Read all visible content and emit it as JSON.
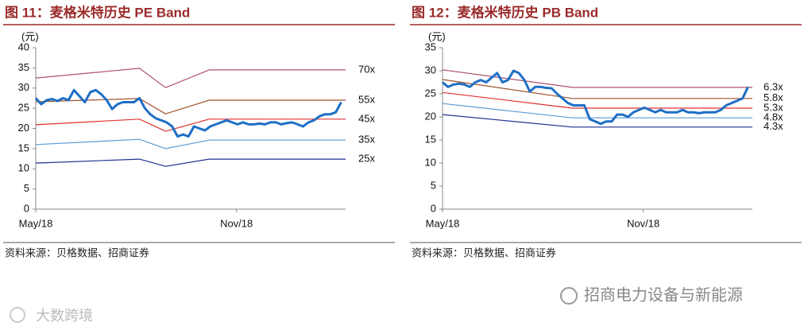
{
  "chart_data": [
    {
      "type": "line",
      "title": "图 11：麦格米特历史 PE Band",
      "y_label": "(元)",
      "source": "资料来源：贝格数据、招商证券",
      "xlim": [
        0,
        284
      ],
      "xticks": [
        {
          "value": 0,
          "label": "May/18"
        },
        {
          "value": 184,
          "label": "Nov/18"
        }
      ],
      "ylim": [
        0,
        40
      ],
      "yticks": [
        0,
        5,
        10,
        15,
        20,
        25,
        30,
        35,
        40
      ],
      "series": [
        {
          "name": "70x",
          "color": "#b0506e",
          "x": [
            0,
            95,
            119,
            159,
            284
          ],
          "values": [
            32.5,
            34.9,
            30.1,
            34.5,
            34.5
          ]
        },
        {
          "name": "55x",
          "color": "#a0522d",
          "x": [
            0,
            95,
            119,
            159,
            284
          ],
          "values": [
            26.6,
            27.4,
            23.6,
            27.0,
            27.0
          ]
        },
        {
          "name": "45x",
          "color": "#e03232",
          "x": [
            0,
            95,
            119,
            159,
            284
          ],
          "values": [
            20.9,
            22.3,
            19.3,
            22.3,
            22.3
          ]
        },
        {
          "name": "35x",
          "color": "#5b9bd5",
          "x": [
            0,
            95,
            119,
            159,
            284
          ],
          "values": [
            16.0,
            17.3,
            15.0,
            17.1,
            17.1
          ]
        },
        {
          "name": "25x",
          "color": "#1f2f8f",
          "x": [
            0,
            95,
            119,
            159,
            284
          ],
          "values": [
            11.4,
            12.4,
            10.6,
            12.4,
            12.4
          ]
        },
        {
          "color": "#1f6fc5",
          "x": [
            0,
            5,
            10,
            15,
            20,
            25,
            30,
            35,
            40,
            45,
            50,
            55,
            60,
            65,
            70,
            75,
            80,
            85,
            90,
            95,
            100,
            105,
            110,
            115,
            120,
            125,
            130,
            135,
            140,
            145,
            150,
            155,
            160,
            165,
            170,
            175,
            180,
            185,
            190,
            195,
            200,
            205,
            210,
            215,
            220,
            225,
            230,
            235,
            240,
            245,
            250,
            255,
            260,
            265,
            270,
            275,
            280
          ],
          "values": [
            27.5,
            26,
            27,
            27.3,
            26.8,
            27.5,
            27,
            29.5,
            28,
            26.5,
            29,
            29.5,
            28.5,
            27,
            24.8,
            26,
            26.5,
            26.5,
            26.5,
            27.5,
            25,
            23.5,
            22.5,
            22,
            21.5,
            20.5,
            18,
            18.5,
            18,
            20.5,
            20,
            19.5,
            20.5,
            21,
            21.5,
            22,
            21.5,
            21,
            21.5,
            21,
            21,
            21.2,
            21,
            21.5,
            21.5,
            21,
            21.3,
            21.5,
            21,
            20.5,
            21.5,
            22,
            23,
            23.5,
            23.5,
            24,
            26.5
          ]
        }
      ]
    },
    {
      "type": "line",
      "title": "图 12：麦格米特历史 PB Band",
      "y_label": "(元)",
      "source": "资料来源：贝格数据、招商证券",
      "xlim": [
        0,
        284
      ],
      "xticks": [
        {
          "value": 0,
          "label": "May/18"
        },
        {
          "value": 184,
          "label": "Nov/18"
        }
      ],
      "ylim": [
        0,
        35
      ],
      "yticks": [
        0,
        5,
        10,
        15,
        20,
        25,
        30,
        35
      ],
      "series": [
        {
          "name": "6.3x",
          "color": "#b0506e",
          "x": [
            0,
            119,
            284
          ],
          "values": [
            30.2,
            26.4,
            26.4
          ]
        },
        {
          "name": "5.8x",
          "color": "#a0522d",
          "x": [
            0,
            119,
            284
          ],
          "values": [
            28.1,
            24.0,
            24.0
          ]
        },
        {
          "name": "5.3x",
          "color": "#e03232",
          "x": [
            0,
            119,
            284
          ],
          "values": [
            25.3,
            21.9,
            21.9
          ]
        },
        {
          "name": "4.8x",
          "color": "#5b9bd5",
          "x": [
            0,
            119,
            284
          ],
          "values": [
            22.9,
            19.8,
            19.8
          ]
        },
        {
          "name": "4.3x",
          "color": "#1f2f8f",
          "x": [
            0,
            119,
            284
          ],
          "values": [
            20.5,
            17.8,
            17.8
          ]
        },
        {
          "color": "#1f6fc5",
          "x": [
            0,
            5,
            10,
            15,
            20,
            25,
            30,
            35,
            40,
            45,
            50,
            55,
            60,
            65,
            70,
            75,
            80,
            85,
            90,
            95,
            100,
            105,
            110,
            115,
            120,
            125,
            130,
            135,
            140,
            145,
            150,
            155,
            160,
            165,
            170,
            175,
            180,
            185,
            190,
            195,
            200,
            205,
            210,
            215,
            220,
            225,
            230,
            235,
            240,
            245,
            250,
            255,
            260,
            265,
            270,
            275,
            280
          ],
          "values": [
            27.5,
            26.5,
            27,
            27.2,
            27,
            26.5,
            27.5,
            28,
            27.5,
            28.5,
            29.5,
            27.5,
            28,
            30,
            29.5,
            28,
            25.5,
            26.5,
            26.5,
            26.3,
            26.2,
            25,
            24,
            23,
            22.5,
            22.5,
            22.5,
            19.5,
            19,
            18.5,
            19,
            19,
            20.5,
            20.5,
            20,
            21,
            21.5,
            22,
            21.5,
            21,
            21.5,
            21,
            21,
            21,
            21.5,
            21,
            21,
            20.8,
            21,
            21,
            21,
            21.5,
            22.5,
            23,
            23.5,
            24,
            26.5
          ]
        }
      ]
    }
  ],
  "watermarks": {
    "account": "招商电力设备与新能源",
    "site": "大数跨境"
  }
}
